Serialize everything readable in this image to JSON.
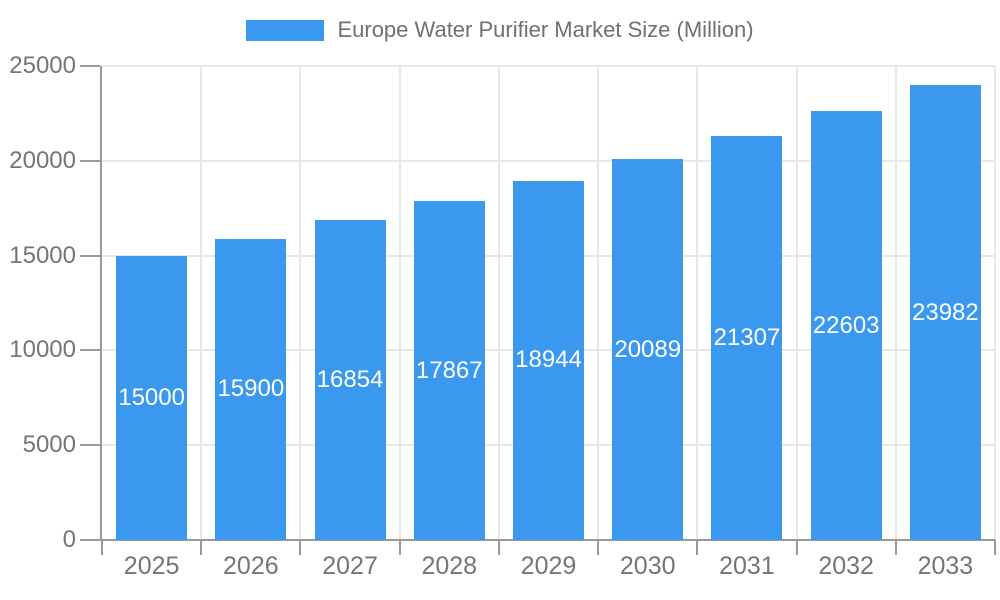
{
  "legend": {
    "label": "Europe Water Purifier Market Size (Million)"
  },
  "chart_data": {
    "type": "bar",
    "title": "Europe Water Purifier Market Size (Million)",
    "series": [
      {
        "name": "Europe Water Purifier Market Size (Million)",
        "values": [
          15000,
          15900,
          16854,
          17867,
          18944,
          20089,
          21307,
          22603,
          23982
        ]
      }
    ],
    "categories": [
      "2025",
      "2026",
      "2027",
      "2028",
      "2029",
      "2030",
      "2031",
      "2032",
      "2033"
    ],
    "values": [
      15000,
      15900,
      16854,
      17867,
      18944,
      20089,
      21307,
      22603,
      23982
    ],
    "value_labels": [
      "15000",
      "15900",
      "16854",
      "17867",
      "18944",
      "20089",
      "21307",
      "22603",
      "23982"
    ],
    "xlabel": "",
    "ylabel": "",
    "ylim": [
      0,
      25000
    ],
    "ytick_interval": 5000,
    "yticks": [
      "0",
      "5000",
      "10000",
      "15000",
      "20000",
      "25000"
    ],
    "grid": "horizontal and vertical gridlines on",
    "legend_position": "top-center",
    "value_label_position": "inside-bar-centered"
  },
  "style": {
    "bar_color": "#3A99EE",
    "grid_color": "#E8E8E8",
    "axis_color": "#9A9A9A",
    "axis_label_color": "#757575",
    "legend_text_color": "#707070",
    "value_label_color": "#FFFFFF",
    "background": "#FFFFFF"
  }
}
